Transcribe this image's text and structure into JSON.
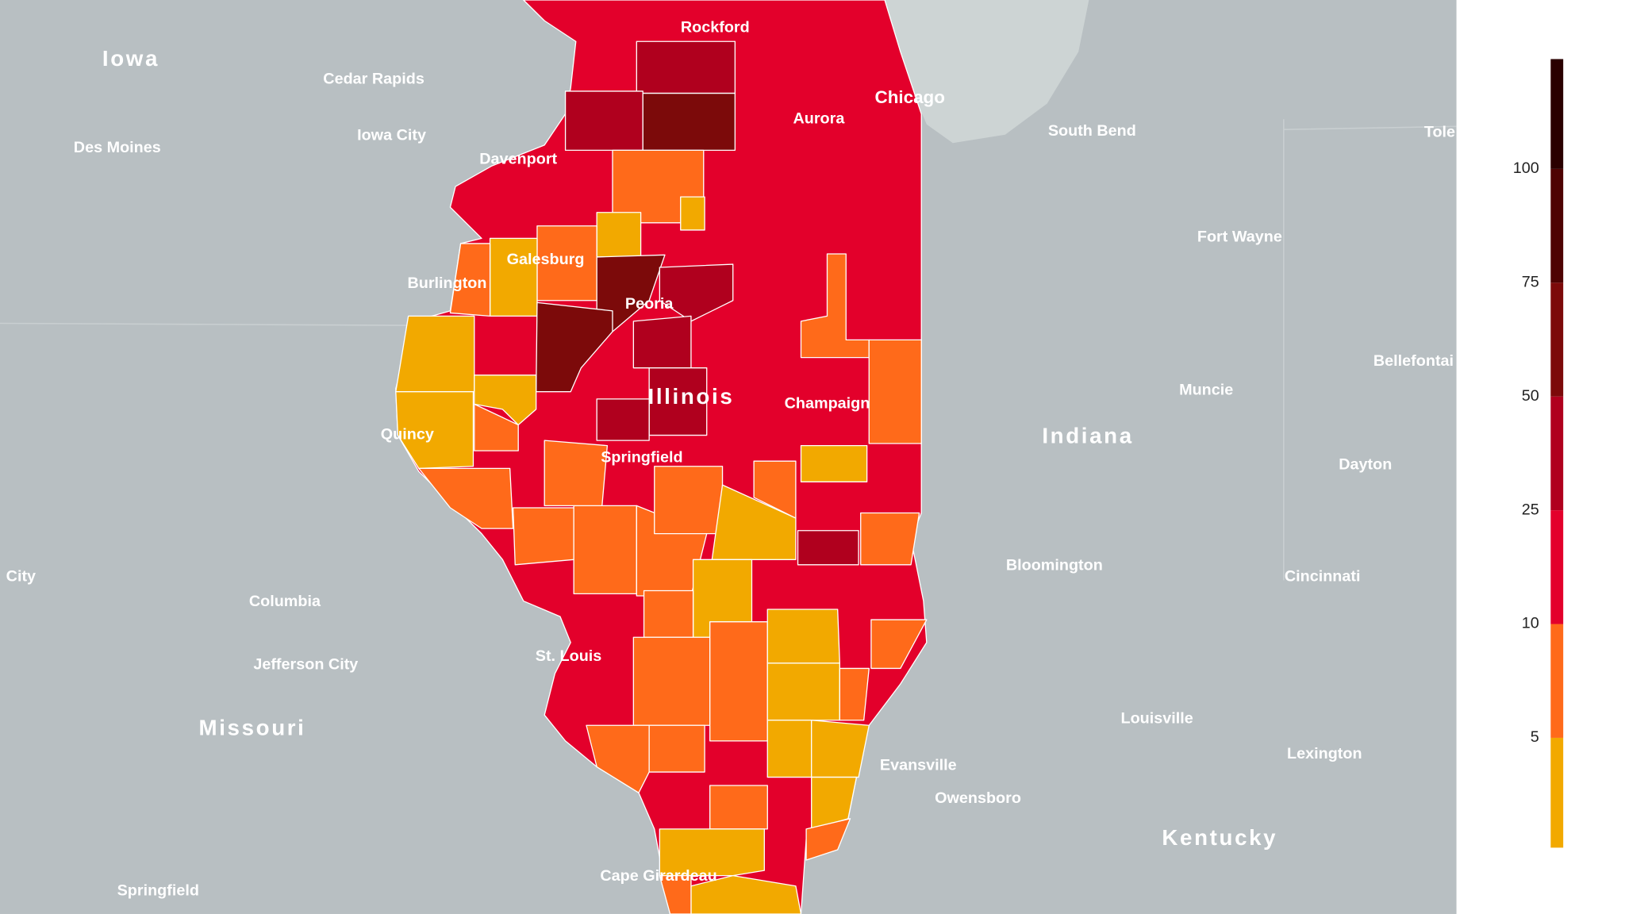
{
  "labels": [
    "Iowa",
    "Cedar Rapids",
    "Des Moines",
    "Iowa City",
    "Davenport",
    "Rockford",
    "Chicago",
    "Aurora",
    "South Bend",
    "Tole",
    "Fort Wayne",
    "Galesburg",
    "Burlington",
    "Peoria",
    "Bellefontai",
    "Muncie",
    "Illinois",
    "Champaign",
    "Quincy",
    "Indiana",
    "Springfield",
    "Dayton",
    "Bloomington",
    "City",
    "Cincinnati",
    "Columbia",
    "St. Louis",
    "Jefferson City",
    "Louisville",
    "Missouri",
    "Lexington",
    "Evansville",
    "Owensboro",
    "Kentucky",
    "Cape Girardeau",
    "Springfield"
  ],
  "legend": {
    "ticks": [
      5,
      10,
      25,
      50,
      75,
      100
    ],
    "colors": [
      "#f2a900",
      "#ff6a1a",
      "#e3002b",
      "#b0001e",
      "#7c0a0a",
      "#4e0303",
      "#2a0000"
    ]
  }
}
